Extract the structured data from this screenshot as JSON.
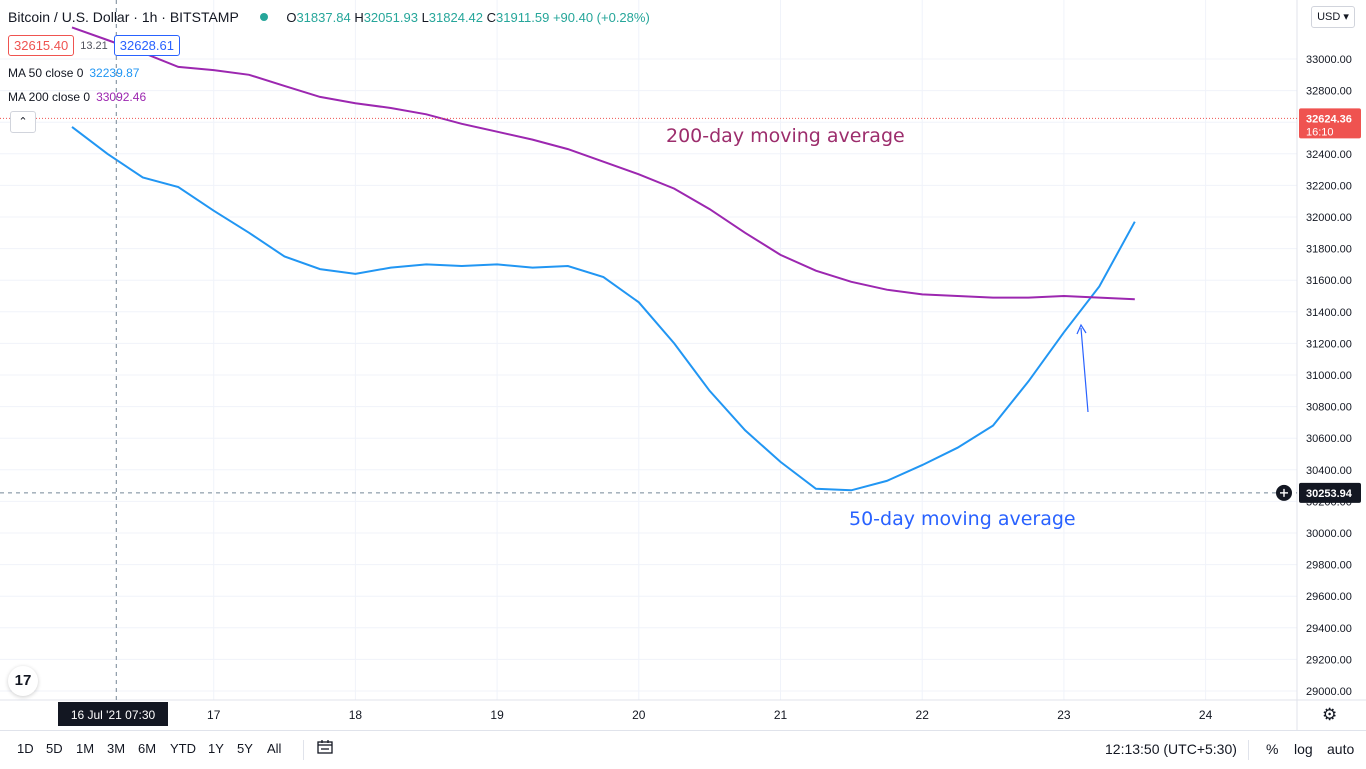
{
  "header": {
    "title": "Bitcoin / U.S. Dollar · 1h · BITSTAMP",
    "o_label": "O",
    "o": "31837.84",
    "h_label": "H",
    "h": "32051.93",
    "l_label": "L",
    "l": "31824.42",
    "c_label": "C",
    "c": "31911.59",
    "change": "+90.40 (+0.28%)",
    "sell": "32615.40",
    "spread": "13.21",
    "buy": "32628.61"
  },
  "indicators": {
    "ma50": {
      "label": "MA 50 close 0",
      "value": "32239.87",
      "color": "#2196f3"
    },
    "ma200": {
      "label": "MA 200 close 0",
      "value": "33092.46",
      "color": "#9c27b0"
    }
  },
  "price_axis": {
    "currency": "USD"
  },
  "last_price": {
    "value": "32624.36",
    "countdown": "16:10",
    "color": "#ef5350"
  },
  "crosshair": {
    "price": "30253.94",
    "time": "16 Jul '21   07:30"
  },
  "toolbar": {
    "timeframes": [
      "1D",
      "5D",
      "1M",
      "3M",
      "6M",
      "YTD",
      "1Y",
      "5Y",
      "All"
    ],
    "clock": "12:13:50 (UTC+5:30)",
    "percent": "%",
    "log": "log",
    "auto": "auto"
  },
  "icons": {
    "logo": "tradingview-logo-icon",
    "calendar": "calendar-range-icon",
    "settings": "gear-icon",
    "collapse": "chevron-up-icon",
    "crosshair_add": "plus-circle-icon"
  },
  "colors": {
    "up": "#26a69a",
    "down": "#ef5350",
    "annotation_200": "#9c2d6c",
    "annotation_50": "#2962ff"
  },
  "chart_data": {
    "type": "candlestick",
    "title": "Bitcoin / U.S. Dollar · 1h · BITSTAMP",
    "xlabel": "",
    "ylabel": "",
    "ylim": [
      28900,
      33200
    ],
    "y_ticks": [
      29000,
      29200,
      29400,
      29600,
      29800,
      30000,
      30200,
      30400,
      30600,
      30800,
      31000,
      31200,
      31400,
      31600,
      31800,
      32000,
      32200,
      32400,
      32600,
      32800,
      33000
    ],
    "x_tick_labels": [
      "17",
      "18",
      "19",
      "20",
      "21",
      "22",
      "23",
      "24"
    ],
    "x_range": [
      "2021-07-16T00:00",
      "2021-07-25T00:00"
    ],
    "grid": true,
    "candles": [],
    "series": [
      {
        "name": "MA 50 close 0",
        "x": [
          "2021-07-16T00:00",
          "2021-07-16T06:00",
          "2021-07-16T12:00",
          "2021-07-16T18:00",
          "2021-07-17T00:00",
          "2021-07-17T06:00",
          "2021-07-17T12:00",
          "2021-07-17T18:00",
          "2021-07-18T00:00",
          "2021-07-18T06:00",
          "2021-07-18T12:00",
          "2021-07-18T18:00",
          "2021-07-19T00:00",
          "2021-07-19T06:00",
          "2021-07-19T12:00",
          "2021-07-19T18:00",
          "2021-07-20T00:00",
          "2021-07-20T06:00",
          "2021-07-20T12:00",
          "2021-07-20T18:00",
          "2021-07-21T00:00",
          "2021-07-21T06:00",
          "2021-07-21T12:00",
          "2021-07-21T18:00",
          "2021-07-22T00:00",
          "2021-07-22T06:00",
          "2021-07-22T12:00",
          "2021-07-22T18:00",
          "2021-07-23T00:00",
          "2021-07-23T06:00",
          "2021-07-23T12:00"
        ],
        "values": [
          32570,
          32400,
          32250,
          32190,
          32040,
          31900,
          31750,
          31670,
          31640,
          31680,
          31700,
          31690,
          31700,
          31680,
          31690,
          31620,
          31460,
          31200,
          30900,
          30650,
          30450,
          30280,
          30270,
          30330,
          30430,
          30540,
          30680,
          30960,
          31270,
          31560,
          31970
        ]
      },
      {
        "name": "MA 200 close 0",
        "x": [
          "2021-07-16T00:00",
          "2021-07-16T06:00",
          "2021-07-16T12:00",
          "2021-07-16T18:00",
          "2021-07-17T00:00",
          "2021-07-17T06:00",
          "2021-07-17T12:00",
          "2021-07-17T18:00",
          "2021-07-18T00:00",
          "2021-07-18T06:00",
          "2021-07-18T12:00",
          "2021-07-18T18:00",
          "2021-07-19T00:00",
          "2021-07-19T06:00",
          "2021-07-19T12:00",
          "2021-07-19T18:00",
          "2021-07-20T00:00",
          "2021-07-20T06:00",
          "2021-07-20T12:00",
          "2021-07-20T18:00",
          "2021-07-21T00:00",
          "2021-07-21T06:00",
          "2021-07-21T12:00",
          "2021-07-21T18:00",
          "2021-07-22T00:00",
          "2021-07-22T06:00",
          "2021-07-22T12:00",
          "2021-07-22T18:00",
          "2021-07-23T00:00",
          "2021-07-23T06:00",
          "2021-07-23T12:00"
        ],
        "values": [
          33200,
          33120,
          33040,
          32950,
          32930,
          32900,
          32830,
          32760,
          32720,
          32690,
          32650,
          32590,
          32540,
          32490,
          32430,
          32350,
          32270,
          32180,
          32050,
          31900,
          31760,
          31660,
          31590,
          31540,
          31510,
          31500,
          31490,
          31490,
          31500,
          31490,
          31480
        ]
      }
    ],
    "annotations": [
      {
        "text": "200-day moving average",
        "color": "#9c2d6c"
      },
      {
        "text": "50-day moving average",
        "color": "#2962ff"
      }
    ]
  }
}
